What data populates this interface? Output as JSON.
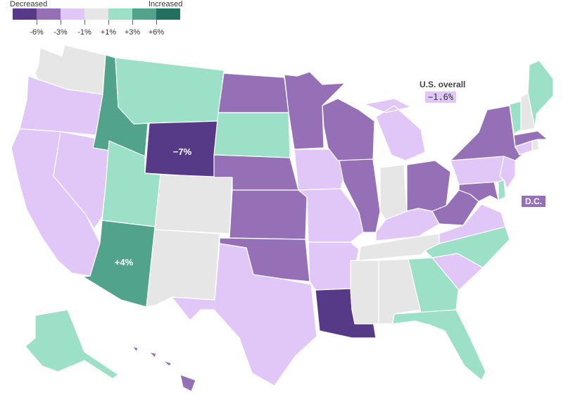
{
  "legend": {
    "decreased_label": "Decreased",
    "increased_label": "Increased",
    "colors": [
      "#573a87",
      "#9570b7",
      "#e0c7f7",
      "#e6e6e6",
      "#9be0c7",
      "#52a38c",
      "#217060"
    ],
    "ticks": [
      "-6%",
      "-3%",
      "-1%",
      "+1%",
      "+3%",
      "+6%"
    ]
  },
  "overall": {
    "label": "U.S. overall",
    "value": "−1.6%"
  },
  "dc": {
    "label": "D.C.",
    "color": "#9570b7"
  },
  "annotations": {
    "wyoming": "−7%",
    "arizona": "+4%"
  },
  "states": [
    {
      "name": "Washington",
      "color": "#e6e6e6"
    },
    {
      "name": "Oregon",
      "color": "#e0c7f7"
    },
    {
      "name": "California",
      "color": "#e0c7f7"
    },
    {
      "name": "Nevada",
      "color": "#e0c7f7"
    },
    {
      "name": "Idaho",
      "color": "#52a38c"
    },
    {
      "name": "Montana",
      "color": "#9be0c7"
    },
    {
      "name": "Wyoming",
      "color": "#573a87"
    },
    {
      "name": "Utah",
      "color": "#9be0c7"
    },
    {
      "name": "Arizona",
      "color": "#52a38c"
    },
    {
      "name": "Colorado",
      "color": "#e6e6e6"
    },
    {
      "name": "New Mexico",
      "color": "#e6e6e6"
    },
    {
      "name": "North Dakota",
      "color": "#9570b7"
    },
    {
      "name": "South Dakota",
      "color": "#9be0c7"
    },
    {
      "name": "Nebraska",
      "color": "#9570b7"
    },
    {
      "name": "Kansas",
      "color": "#9570b7"
    },
    {
      "name": "Oklahoma",
      "color": "#9570b7"
    },
    {
      "name": "Texas",
      "color": "#e0c7f7"
    },
    {
      "name": "Minnesota",
      "color": "#9570b7"
    },
    {
      "name": "Iowa",
      "color": "#e0c7f7"
    },
    {
      "name": "Missouri",
      "color": "#e0c7f7"
    },
    {
      "name": "Arkansas",
      "color": "#e0c7f7"
    },
    {
      "name": "Louisiana",
      "color": "#573a87"
    },
    {
      "name": "Wisconsin",
      "color": "#9570b7"
    },
    {
      "name": "Illinois",
      "color": "#9570b7"
    },
    {
      "name": "Michigan",
      "color": "#e0c7f7"
    },
    {
      "name": "Indiana",
      "color": "#e6e6e6"
    },
    {
      "name": "Ohio",
      "color": "#9570b7"
    },
    {
      "name": "Kentucky",
      "color": "#e0c7f7"
    },
    {
      "name": "Tennessee",
      "color": "#e6e6e6"
    },
    {
      "name": "Mississippi",
      "color": "#e6e6e6"
    },
    {
      "name": "Alabama",
      "color": "#e6e6e6"
    },
    {
      "name": "Georgia",
      "color": "#9be0c7"
    },
    {
      "name": "Florida",
      "color": "#9be0c7"
    },
    {
      "name": "South Carolina",
      "color": "#e0c7f7"
    },
    {
      "name": "North Carolina",
      "color": "#9be0c7"
    },
    {
      "name": "Virginia",
      "color": "#e0c7f7"
    },
    {
      "name": "West Virginia",
      "color": "#9570b7"
    },
    {
      "name": "Maryland",
      "color": "#9570b7"
    },
    {
      "name": "Delaware",
      "color": "#9be0c7"
    },
    {
      "name": "Pennsylvania",
      "color": "#e0c7f7"
    },
    {
      "name": "New Jersey",
      "color": "#e0c7f7"
    },
    {
      "name": "New York",
      "color": "#9570b7"
    },
    {
      "name": "Connecticut",
      "color": "#e0c7f7"
    },
    {
      "name": "Rhode Island",
      "color": "#e6e6e6"
    },
    {
      "name": "Massachusetts",
      "color": "#9570b7"
    },
    {
      "name": "Vermont",
      "color": "#9be0c7"
    },
    {
      "name": "New Hampshire",
      "color": "#e6e6e6"
    },
    {
      "name": "Maine",
      "color": "#9be0c7"
    },
    {
      "name": "Alaska",
      "color": "#9be0c7"
    },
    {
      "name": "Hawaii",
      "color": "#9570b7"
    }
  ]
}
